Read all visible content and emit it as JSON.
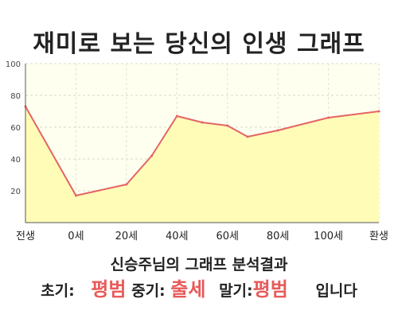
{
  "title": "재미로 보는 당신의 인생 그래프",
  "summary": "신승주님의 그래프 분석결과",
  "result": {
    "early_label": "초기:",
    "early_value": "평범",
    "middle_label": "중기:",
    "middle_value": "출세",
    "late_label": "말기:",
    "late_value": "평범",
    "suffix": "입니다"
  },
  "colors": {
    "line": "#e46464",
    "fill": "#fffcb8",
    "plot_bg": "#fffff0",
    "result_value": "#e85a5a"
  },
  "chart_data": {
    "type": "area",
    "x": [
      0,
      10,
      20,
      30,
      40,
      50,
      60,
      70,
      80,
      90,
      100,
      110
    ],
    "x_tick_labels": [
      "전생",
      "0세",
      "20세",
      "40세",
      "60세",
      "80세",
      "100세",
      "환생"
    ],
    "x_tick_positions": [
      0,
      20,
      40,
      60,
      80,
      100,
      120,
      140
    ],
    "values": [
      73,
      17,
      20,
      23,
      45,
      67,
      63,
      61,
      54,
      58,
      66,
      70
    ],
    "points": [
      {
        "x": 0,
        "y": 73
      },
      {
        "x": 20,
        "y": 17
      },
      {
        "x": 40,
        "y": 24
      },
      {
        "x": 50,
        "y": 42
      },
      {
        "x": 60,
        "y": 67
      },
      {
        "x": 70,
        "y": 63
      },
      {
        "x": 80,
        "y": 61
      },
      {
        "x": 88,
        "y": 54
      },
      {
        "x": 100,
        "y": 58
      },
      {
        "x": 120,
        "y": 66
      },
      {
        "x": 140,
        "y": 70
      }
    ],
    "xlim": [
      0,
      140
    ],
    "ylim": [
      0,
      100
    ],
    "y_ticks": [
      20,
      40,
      60,
      80,
      100
    ],
    "grid": true,
    "legend": "none"
  }
}
